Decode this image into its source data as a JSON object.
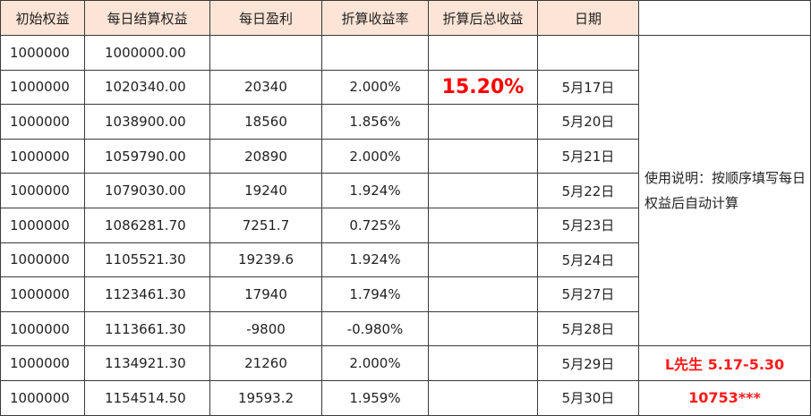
{
  "headers": [
    "初始权益",
    "每日结算权益",
    "每日盈利",
    "折算收益率",
    "折算后总收益",
    "日期"
  ],
  "rows": [
    [
      "1000000",
      "1000000.00",
      "",
      "",
      "",
      ""
    ],
    [
      "1000000",
      "1020340.00",
      "20340",
      "2.000%",
      "15.20%",
      "5月17日"
    ],
    [
      "1000000",
      "1038900.00",
      "18560",
      "1.856%",
      "",
      "5月20日"
    ],
    [
      "1000000",
      "1059790.00",
      "20890",
      "2.000%",
      "",
      "5月21日"
    ],
    [
      "1000000",
      "1079030.00",
      "19240",
      "1.924%",
      "",
      "5月22日"
    ],
    [
      "1000000",
      "1086281.70",
      "7251.7",
      "0.725%",
      "",
      "5月23日"
    ],
    [
      "1000000",
      "1105521.30",
      "19239.6",
      "1.924%",
      "",
      "5月24日"
    ],
    [
      "1000000",
      "1123461.30",
      "17940",
      "1.794%",
      "",
      "5月27日"
    ],
    [
      "1000000",
      "1113661.30",
      "-9800",
      "-0.980%",
      "",
      "5月28日"
    ],
    [
      "1000000",
      "1134921.30",
      "21260",
      "2.000%",
      "",
      "5月29日"
    ],
    [
      "1000000",
      "1154514.50",
      "19593.2",
      "1.959%",
      "",
      "5月30日"
    ]
  ],
  "note": "使用说明：按顺序填写每日权益后自动计算",
  "signature": "L先生 5.17-5.30",
  "account": "10753***",
  "colors": {
    "header_fill": "#fce4d6",
    "highlight": "#ff0000"
  }
}
